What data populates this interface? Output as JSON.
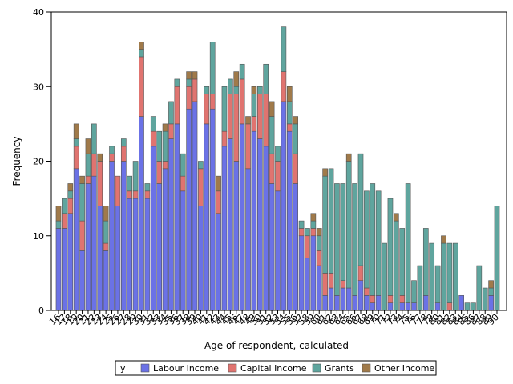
{
  "chart_data": {
    "type": "bar",
    "stacked": true,
    "title": "",
    "xlabel": "Age of respondent, calculated",
    "ylabel": "Frequency",
    "ylim": [
      0,
      40
    ],
    "yticks": [
      0,
      10,
      20,
      30,
      40
    ],
    "grid": false,
    "legend_position": "bottom",
    "legend_title": "y",
    "categories": [
      16,
      17,
      18,
      19,
      20,
      21,
      22,
      23,
      24,
      25,
      26,
      27,
      28,
      29,
      30,
      31,
      32,
      33,
      34,
      35,
      36,
      37,
      38,
      39,
      40,
      41,
      42,
      43,
      44,
      45,
      46,
      47,
      48,
      49,
      50,
      51,
      52,
      53,
      54,
      55,
      56,
      57,
      58,
      59,
      60,
      61,
      62,
      63,
      64,
      65,
      66,
      67,
      68,
      69,
      70,
      71,
      72,
      73,
      74,
      75,
      76,
      77,
      78,
      79,
      80,
      81,
      82,
      83,
      84,
      85,
      86,
      87,
      88,
      89,
      90
    ],
    "x_tick_labels": [
      "16",
      "17",
      "18",
      "19",
      "20",
      "21",
      "22",
      "23",
      "24",
      "25",
      "26",
      "27",
      "28",
      "29",
      "30",
      "31",
      "32",
      "33",
      "34",
      "35",
      "36",
      "37",
      "38",
      "39",
      "40",
      "41",
      "42",
      "43",
      "44",
      "45",
      "46",
      "47",
      "48",
      "49",
      "50",
      "51",
      "52",
      "53",
      "54",
      "55",
      "56",
      "57",
      "58",
      "59",
      "60",
      "61",
      "62",
      "63",
      "64",
      "65",
      "66",
      "67",
      "68",
      "69",
      "70",
      "71",
      "72",
      "73",
      "74",
      "75",
      "76",
      "77",
      "78",
      "79",
      "80",
      "81",
      "82",
      "83",
      "84",
      "85",
      "86",
      "87",
      "88",
      "89",
      "90"
    ],
    "series": [
      {
        "name": "Labour Income",
        "color": "#6b72e6",
        "values": [
          11,
          11,
          13,
          19,
          8,
          17,
          18,
          14,
          8,
          20,
          14,
          20,
          15,
          15,
          26,
          15,
          22,
          17,
          19,
          23,
          25,
          16,
          27,
          28,
          14,
          25,
          27,
          13,
          22,
          23,
          20,
          25,
          19,
          24,
          23,
          22,
          17,
          16,
          28,
          24,
          17,
          10,
          7,
          10,
          6,
          2,
          3,
          2,
          3,
          3,
          2,
          4,
          2,
          1,
          2,
          0,
          1,
          0,
          1,
          1,
          1,
          0,
          2,
          0,
          1,
          0,
          0,
          0,
          2,
          0,
          0,
          0,
          0,
          2,
          0
        ]
      },
      {
        "name": "Capital Income",
        "color": "#e07470",
        "values": [
          0,
          2,
          2,
          3,
          4,
          1,
          3,
          6,
          1,
          1,
          4,
          2,
          1,
          1,
          8,
          1,
          2,
          3,
          1,
          2,
          5,
          2,
          3,
          3,
          5,
          4,
          2,
          3,
          2,
          6,
          9,
          6,
          6,
          2,
          6,
          7,
          4,
          4,
          4,
          1,
          4,
          1,
          3,
          1,
          2,
          3,
          2,
          0,
          1,
          0,
          0,
          2,
          1,
          1,
          0,
          0,
          1,
          0,
          1,
          0,
          0,
          0,
          0,
          0,
          0,
          0,
          1,
          0,
          0,
          0,
          0,
          0,
          0,
          0,
          0
        ]
      },
      {
        "name": "Grants",
        "color": "#5fa59e",
        "values": [
          1,
          2,
          1,
          1,
          5,
          3,
          4,
          0,
          3,
          1,
          0,
          1,
          2,
          4,
          1,
          1,
          2,
          4,
          4,
          3,
          1,
          3,
          1,
          0,
          1,
          1,
          7,
          0,
          6,
          2,
          1,
          2,
          0,
          3,
          1,
          4,
          5,
          2,
          6,
          3,
          4,
          1,
          1,
          1,
          2,
          13,
          14,
          15,
          13,
          17,
          15,
          15,
          13,
          15,
          14,
          9,
          13,
          12,
          9,
          16,
          3,
          6,
          9,
          9,
          5,
          9,
          8,
          9,
          0,
          1,
          1,
          6,
          3,
          1,
          14
        ]
      },
      {
        "name": "Other Income",
        "color": "#a07a4a",
        "values": [
          2,
          0,
          1,
          2,
          1,
          2,
          0,
          1,
          2,
          0,
          0,
          0,
          0,
          0,
          1,
          0,
          0,
          0,
          1,
          0,
          0,
          0,
          1,
          1,
          0,
          0,
          0,
          2,
          0,
          0,
          2,
          0,
          1,
          1,
          0,
          0,
          2,
          0,
          0,
          2,
          1,
          0,
          0,
          1,
          1,
          1,
          0,
          0,
          0,
          1,
          0,
          0,
          0,
          0,
          0,
          0,
          0,
          1,
          0,
          0,
          0,
          0,
          0,
          0,
          0,
          1,
          0,
          0,
          0,
          0,
          0,
          0,
          0,
          1,
          0
        ]
      }
    ]
  }
}
